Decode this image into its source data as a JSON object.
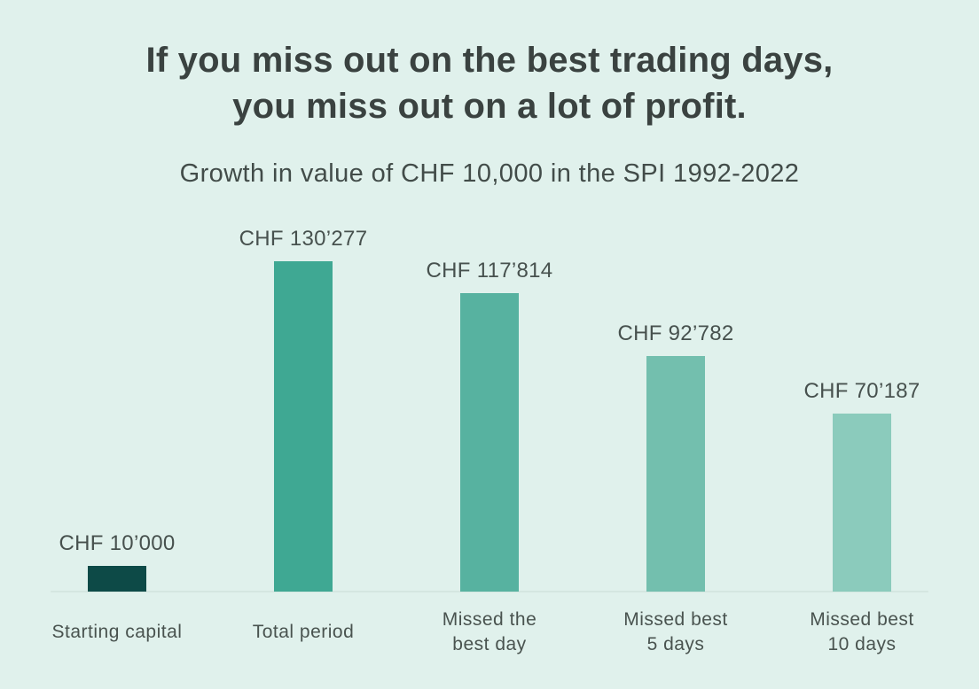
{
  "page": {
    "background_color": "#e0f1ec"
  },
  "header": {
    "title_line1": "If you miss out on the best trading days,",
    "title_line2": "you miss out on a lot of profit.",
    "subtitle": "Growth in value of CHF 10,000 in the SPI 1992-2022"
  },
  "chart_data": {
    "type": "bar",
    "title": "If you miss out on the best trading days, you miss out on a lot of profit.",
    "subtitle": "Growth in value of CHF 10,000 in the SPI 1992-2022",
    "currency": "CHF",
    "categories": [
      "Starting capital",
      "Total period",
      "Missed the best day",
      "Missed best 5 days",
      "Missed best 10 days"
    ],
    "values": [
      10000,
      130277,
      117814,
      92782,
      70187
    ],
    "value_labels": [
      "CHF 10’000",
      "CHF 130’277",
      "CHF 117’814",
      "CHF 92’782",
      "CHF 70’187"
    ],
    "category_label_lines": [
      [
        "Starting capital"
      ],
      [
        "Total period"
      ],
      [
        "Missed the",
        "best day"
      ],
      [
        "Missed best",
        "5 days"
      ],
      [
        "Missed best",
        "10 days"
      ]
    ],
    "bar_colors": [
      "#0d4a47",
      "#3fa893",
      "#57b2a0",
      "#73bfae",
      "#8bcbbc"
    ],
    "xlabel": "",
    "ylabel": "",
    "ylim": [
      0,
      140000
    ],
    "grid": false,
    "legend": null,
    "axis_line_color": "#d4e6e0",
    "data_labels_position": "above-bars"
  }
}
